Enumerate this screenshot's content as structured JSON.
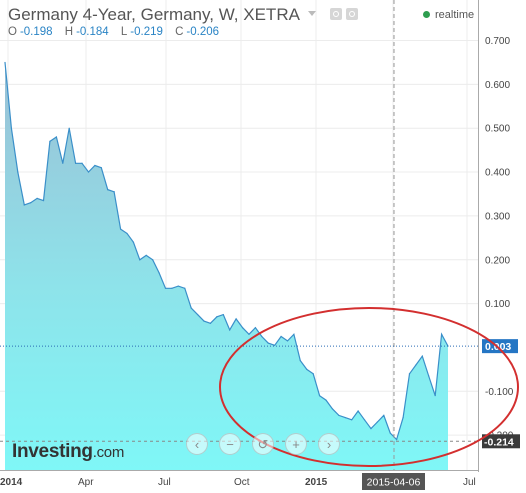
{
  "header": {
    "title": "Germany 4-Year, Germany, W, XETRA",
    "realtime_label": "realtime",
    "ohlc": [
      {
        "key": "O",
        "value": "-0.198"
      },
      {
        "key": "H",
        "value": "-0.184"
      },
      {
        "key": "L",
        "value": "-0.219"
      },
      {
        "key": "C",
        "value": "-0.206"
      }
    ]
  },
  "branding": {
    "logo_main": "Investing",
    "logo_suffix": ".com"
  },
  "nav_controls": [
    {
      "name": "scroll-left-button",
      "glyph": "‹"
    },
    {
      "name": "zoom-out-button",
      "glyph": "−"
    },
    {
      "name": "reset-button",
      "glyph": "↺"
    },
    {
      "name": "zoom-in-button",
      "glyph": "+"
    },
    {
      "name": "scroll-right-button",
      "glyph": "›"
    }
  ],
  "colors": {
    "line": "#3a8fc9",
    "fill_top": "#9bbfd5",
    "fill_bottom": "#7ff7f7",
    "last_price_label": "#2576c4",
    "low_label": "#3a3a3a",
    "annotation": "#d32f2f",
    "crosshair_label": "#555555"
  },
  "chart_data": {
    "type": "area",
    "x_tick_labels": [
      "2014",
      "Apr",
      "Jul",
      "Oct",
      "2015",
      "Jul"
    ],
    "y_tick_labels": [
      "0.700",
      "0.600",
      "0.500",
      "0.400",
      "0.300",
      "0.200",
      "0.100",
      "-0.100",
      "-0.200"
    ],
    "ylim": [
      -0.27,
      0.73
    ],
    "y_ticks": [
      0.7,
      0.6,
      0.5,
      0.4,
      0.3,
      0.2,
      0.1,
      -0.1,
      -0.2
    ],
    "last_price": {
      "value": 0.003,
      "label": "0.003"
    },
    "low_marker": {
      "value": -0.214,
      "label": "-0.214"
    },
    "crosshair_label": "2015-04-06",
    "series": [
      {
        "values": [
          0.65,
          0.5,
          0.4,
          0.325,
          0.33,
          0.34,
          0.335,
          0.47,
          0.48,
          0.42,
          0.5,
          0.42,
          0.42,
          0.4,
          0.415,
          0.41,
          0.36,
          0.355,
          0.27,
          0.26,
          0.24,
          0.2,
          0.21,
          0.2,
          0.17,
          0.135,
          0.135,
          0.14,
          0.135,
          0.09,
          0.075,
          0.06,
          0.055,
          0.07,
          0.075,
          0.04,
          0.065,
          0.045,
          0.03,
          0.045,
          0.025,
          0.01,
          0.005,
          0.025,
          0.015,
          0.03,
          -0.03,
          -0.05,
          -0.06,
          -0.11,
          -0.12,
          -0.14,
          -0.155,
          -0.16,
          -0.165,
          -0.145,
          -0.165,
          -0.185,
          -0.17,
          -0.155,
          -0.195,
          -0.21,
          -0.16,
          -0.06,
          -0.04,
          -0.02,
          -0.065,
          -0.11,
          0.03,
          0.003
        ]
      }
    ]
  }
}
